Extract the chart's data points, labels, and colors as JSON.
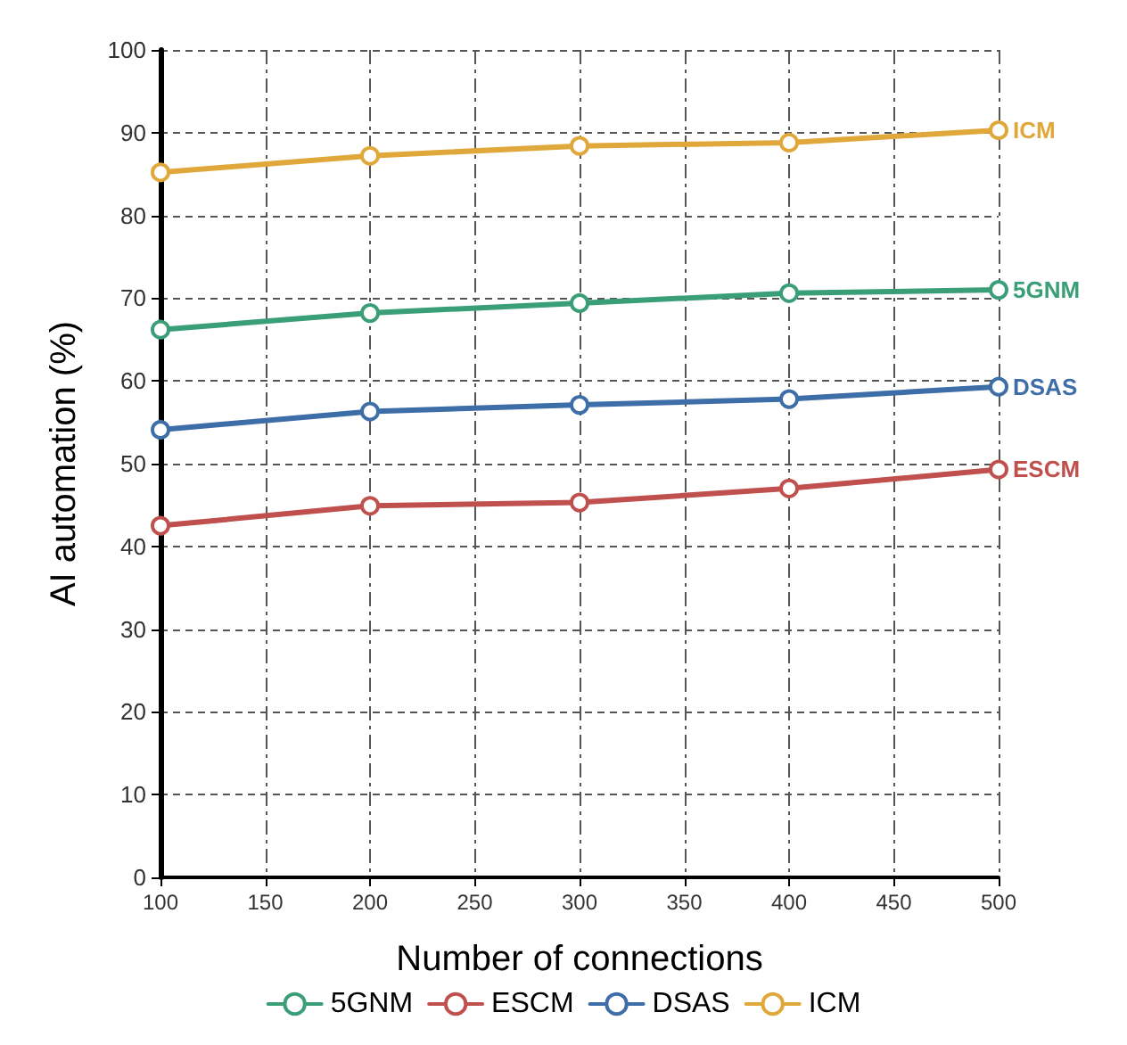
{
  "chart_data": {
    "type": "line",
    "xlabel": "Number of connections",
    "ylabel": "AI automation (%)",
    "x": [
      100,
      200,
      300,
      400,
      500
    ],
    "series": [
      {
        "name": "5GNM",
        "color": "#3a9e78",
        "values": [
          66.2,
          68.2,
          69.4,
          70.6,
          71.0
        ]
      },
      {
        "name": "ESCM",
        "color": "#c0504d",
        "values": [
          42.5,
          44.9,
          45.3,
          47.0,
          49.3
        ]
      },
      {
        "name": "DSAS",
        "color": "#3e6ea8",
        "values": [
          54.1,
          56.3,
          57.1,
          57.8,
          59.3
        ]
      },
      {
        "name": "ICM",
        "color": "#e0a83a",
        "values": [
          85.2,
          87.2,
          88.4,
          88.8,
          90.3
        ]
      }
    ],
    "xlim": [
      100,
      500
    ],
    "xticks": [
      100,
      150,
      200,
      250,
      300,
      350,
      400,
      450,
      500
    ],
    "ylim": [
      0,
      100
    ],
    "yticks": [
      0,
      10,
      20,
      30,
      40,
      50,
      60,
      70,
      80,
      90,
      100
    ],
    "grid": true,
    "legend": "bottom",
    "marker": "circle",
    "line_style": "solid"
  }
}
